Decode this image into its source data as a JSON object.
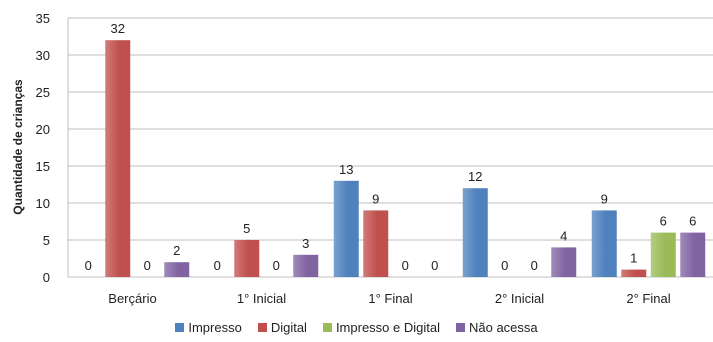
{
  "chart_data": {
    "type": "bar",
    "categories": [
      "Berçário",
      "1° Inicial",
      "1° Final",
      "2° Inicial",
      "2° Final"
    ],
    "series": [
      {
        "name": "Impresso",
        "values": [
          0,
          0,
          13,
          12,
          9
        ],
        "color": "#4F81BD"
      },
      {
        "name": "Digital",
        "values": [
          32,
          5,
          9,
          0,
          1
        ],
        "color": "#C0504D"
      },
      {
        "name": "Impresso e Digital",
        "values": [
          0,
          0,
          0,
          0,
          6
        ],
        "color": "#9BBB59"
      },
      {
        "name": "Não acessa",
        "values": [
          2,
          3,
          0,
          4,
          6
        ],
        "color": "#8064A2"
      }
    ],
    "title": "",
    "xlabel": "",
    "ylabel": "Quantidade de crianças",
    "ylim": [
      0,
      35
    ],
    "yticks": [
      0,
      5,
      10,
      15,
      20,
      25,
      30,
      35
    ],
    "grid": true,
    "legend_position": "bottom"
  }
}
